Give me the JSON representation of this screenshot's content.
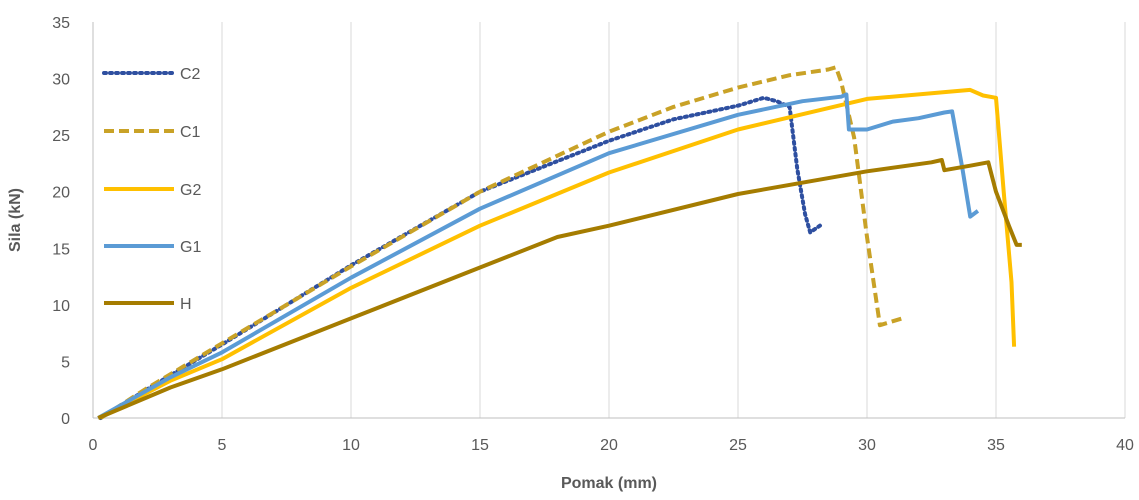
{
  "chart_data": {
    "type": "line",
    "title": "",
    "xlabel": "Pomak (mm)",
    "ylabel": "Sila  (kN)",
    "xlim": [
      0,
      40
    ],
    "ylim": [
      0,
      35
    ],
    "xticks": [
      0,
      5,
      10,
      15,
      20,
      25,
      30,
      35,
      40
    ],
    "yticks": [
      0,
      5,
      10,
      15,
      20,
      25,
      30,
      35
    ],
    "grid": "vertical",
    "legend_position": "left",
    "series": [
      {
        "name": "C2",
        "color": "#2e4fa0",
        "style": "dotted",
        "points": [
          [
            0.3,
            0
          ],
          [
            2,
            2.4
          ],
          [
            5,
            6.5
          ],
          [
            10,
            13.5
          ],
          [
            15,
            20
          ],
          [
            20,
            24.5
          ],
          [
            22.5,
            26.4
          ],
          [
            25,
            27.6
          ],
          [
            26,
            28.3
          ],
          [
            26.5,
            28
          ],
          [
            27,
            27.5
          ],
          [
            27.3,
            22
          ],
          [
            27.6,
            18
          ],
          [
            27.8,
            16.4
          ],
          [
            28.3,
            17.2
          ]
        ]
      },
      {
        "name": "C1",
        "color": "#c9a227",
        "style": "dashed",
        "points": [
          [
            0.3,
            0
          ],
          [
            2,
            2.5
          ],
          [
            5,
            6.6
          ],
          [
            10,
            13.4
          ],
          [
            15,
            20
          ],
          [
            20,
            25.3
          ],
          [
            22.5,
            27.5
          ],
          [
            25,
            29.2
          ],
          [
            27,
            30.3
          ],
          [
            28.5,
            30.8
          ],
          [
            28.8,
            31
          ],
          [
            29,
            29.7
          ],
          [
            29.5,
            24.8
          ],
          [
            30,
            16
          ],
          [
            30.5,
            8.2
          ],
          [
            31.5,
            8.9
          ]
        ]
      },
      {
        "name": "G2",
        "color": "#ffc000",
        "style": "solid",
        "points": [
          [
            0.2,
            0
          ],
          [
            3,
            3.3
          ],
          [
            5,
            5.2
          ],
          [
            10,
            11.5
          ],
          [
            15,
            17
          ],
          [
            20,
            21.7
          ],
          [
            25,
            25.5
          ],
          [
            30,
            28.2
          ],
          [
            33,
            28.8
          ],
          [
            34,
            29
          ],
          [
            34.5,
            28.5
          ],
          [
            35,
            28.3
          ],
          [
            35.3,
            20
          ],
          [
            35.6,
            12
          ],
          [
            35.7,
            6.3
          ]
        ]
      },
      {
        "name": "G1",
        "color": "#5b9bd5",
        "style": "solid",
        "points": [
          [
            0.2,
            0
          ],
          [
            3,
            3.6
          ],
          [
            5,
            5.8
          ],
          [
            10,
            12.4
          ],
          [
            15,
            18.5
          ],
          [
            20,
            23.4
          ],
          [
            25,
            26.8
          ],
          [
            27.5,
            28
          ],
          [
            29,
            28.4
          ],
          [
            29.2,
            28.6
          ],
          [
            29.3,
            25.5
          ],
          [
            30,
            25.5
          ],
          [
            31,
            26.2
          ],
          [
            32,
            26.5
          ],
          [
            33,
            27
          ],
          [
            33.3,
            27.1
          ],
          [
            33.7,
            22
          ],
          [
            34,
            17.8
          ],
          [
            34.3,
            18.3
          ]
        ]
      },
      {
        "name": "H",
        "color": "#a57c00",
        "style": "solid",
        "points": [
          [
            0.2,
            0
          ],
          [
            3,
            2.7
          ],
          [
            5,
            4.3
          ],
          [
            10,
            8.8
          ],
          [
            15,
            13.3
          ],
          [
            18,
            16
          ],
          [
            20,
            17
          ],
          [
            25,
            19.8
          ],
          [
            30,
            21.8
          ],
          [
            32.5,
            22.6
          ],
          [
            32.9,
            22.8
          ],
          [
            33,
            21.9
          ],
          [
            34,
            22.3
          ],
          [
            34.7,
            22.6
          ],
          [
            35,
            20
          ],
          [
            35.5,
            17
          ],
          [
            35.8,
            15.3
          ],
          [
            36,
            15.3
          ]
        ]
      }
    ]
  }
}
